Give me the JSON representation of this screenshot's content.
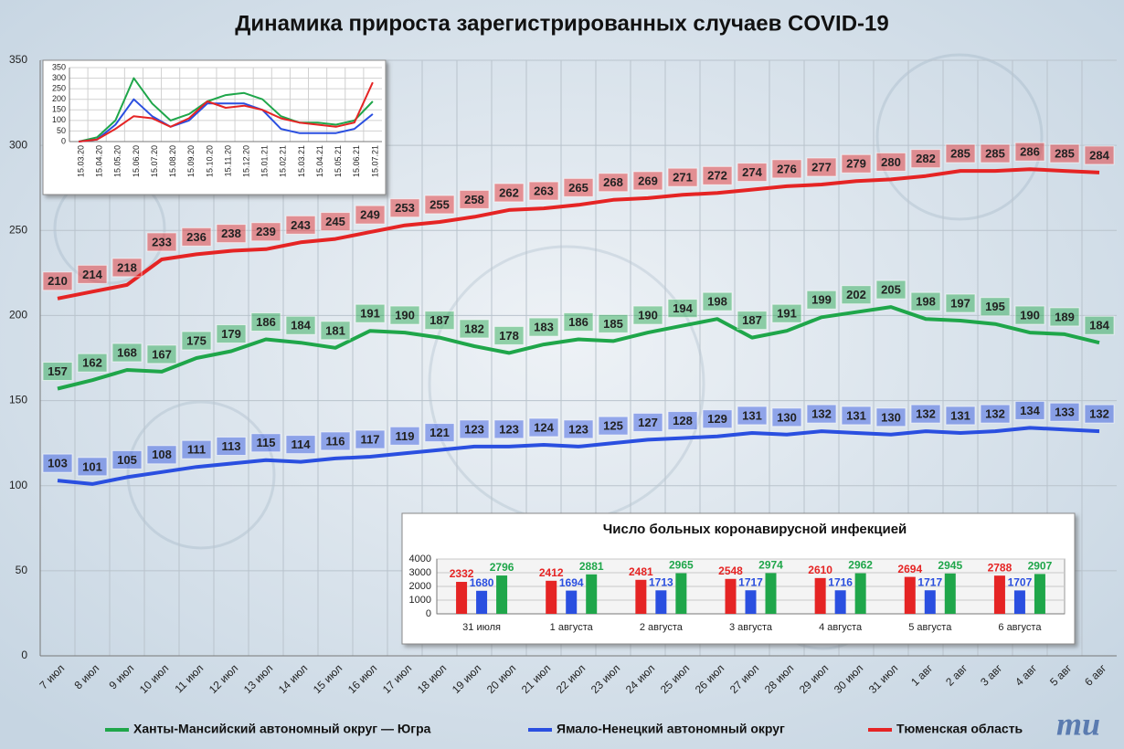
{
  "chart_data": [
    {
      "type": "line",
      "title": "Динамика прироста зарегистрированных случаев COVID-19",
      "categories": [
        "7 июл",
        "8 июл",
        "9 июл",
        "10 июл",
        "11 июл",
        "12 июл",
        "13 июл",
        "14 июл",
        "15 июл",
        "16 июл",
        "17 июл",
        "18 июл",
        "19 июл",
        "20 июл",
        "21 июл",
        "22 июл",
        "23 июл",
        "24 июл",
        "25 июл",
        "26 июл",
        "27 июл",
        "28 июл",
        "29 июл",
        "30 июл",
        "31 июл",
        "1 авг",
        "2 авг",
        "3 авг",
        "4 авг",
        "5 авг",
        "6 авг"
      ],
      "series": [
        {
          "name": "Ханты-Мансийский автономный округ — Югра",
          "color": "#1fa64a",
          "values": [
            157,
            162,
            168,
            167,
            175,
            179,
            186,
            184,
            181,
            191,
            190,
            187,
            182,
            178,
            183,
            186,
            185,
            190,
            194,
            198,
            187,
            191,
            199,
            202,
            205,
            198,
            197,
            195,
            190,
            189,
            184
          ]
        },
        {
          "name": "Ямало-Ненецкий автономный округ",
          "color": "#2a4fe0",
          "values": [
            103,
            101,
            105,
            108,
            111,
            113,
            115,
            114,
            116,
            117,
            119,
            121,
            123,
            123,
            124,
            123,
            125,
            127,
            128,
            129,
            131,
            130,
            132,
            131,
            130,
            132,
            131,
            132,
            134,
            133,
            132
          ]
        },
        {
          "name": "Тюменская область",
          "color": "#e52424",
          "values": [
            210,
            214,
            218,
            233,
            236,
            238,
            239,
            243,
            245,
            249,
            253,
            255,
            258,
            262,
            263,
            265,
            268,
            269,
            271,
            272,
            274,
            276,
            277,
            279,
            280,
            282,
            285,
            285,
            286,
            285,
            284
          ]
        }
      ],
      "ylim": [
        0,
        350
      ],
      "yticks": [
        0,
        50,
        100,
        150,
        200,
        250,
        300,
        350
      ],
      "grid": true,
      "legend": "bottom",
      "data_labels": true
    },
    {
      "type": "line",
      "categories": [
        "15.03.20",
        "15.04.20",
        "15.05.20",
        "15.06.20",
        "15.07.20",
        "15.08.20",
        "15.09.20",
        "15.10.20",
        "15.11.20",
        "15.12.20",
        "15.01.21",
        "15.02.21",
        "15.03.21",
        "15.04.21",
        "15.05.21",
        "15.06.21",
        "15.07.21"
      ],
      "series": [
        {
          "color": "#1fa64a",
          "values": [
            0,
            20,
            100,
            300,
            180,
            100,
            130,
            190,
            220,
            230,
            200,
            120,
            90,
            90,
            80,
            100,
            190
          ]
        },
        {
          "color": "#2a4fe0",
          "values": [
            0,
            10,
            80,
            200,
            120,
            70,
            100,
            180,
            180,
            180,
            150,
            60,
            40,
            40,
            40,
            60,
            130
          ]
        },
        {
          "color": "#e52424",
          "values": [
            0,
            10,
            60,
            120,
            110,
            70,
            110,
            190,
            160,
            170,
            150,
            110,
            90,
            80,
            70,
            90,
            280
          ]
        }
      ],
      "ylim": [
        0,
        350
      ],
      "yticks": [
        0,
        50,
        100,
        150,
        200,
        250,
        300,
        350
      ],
      "grid": true
    },
    {
      "type": "bar",
      "title": "Число больных коронавирусной инфекцией",
      "categories": [
        "31 июля",
        "1 августа",
        "2 августа",
        "3 августа",
        "4 августа",
        "5 августа",
        "6 августа"
      ],
      "series": [
        {
          "color": "#e52424",
          "values": [
            2332,
            2412,
            2481,
            2548,
            2610,
            2694,
            2788
          ]
        },
        {
          "color": "#2a4fe0",
          "values": [
            1680,
            1694,
            1713,
            1717,
            1716,
            1717,
            1707
          ]
        },
        {
          "color": "#1fa64a",
          "values": [
            2796,
            2881,
            2965,
            2974,
            2962,
            2945,
            2907
          ]
        }
      ],
      "ylim": [
        0,
        4000
      ],
      "yticks": [
        0,
        1000,
        2000,
        3000,
        4000
      ],
      "grid": true,
      "data_labels": true
    }
  ],
  "logo": "mu"
}
